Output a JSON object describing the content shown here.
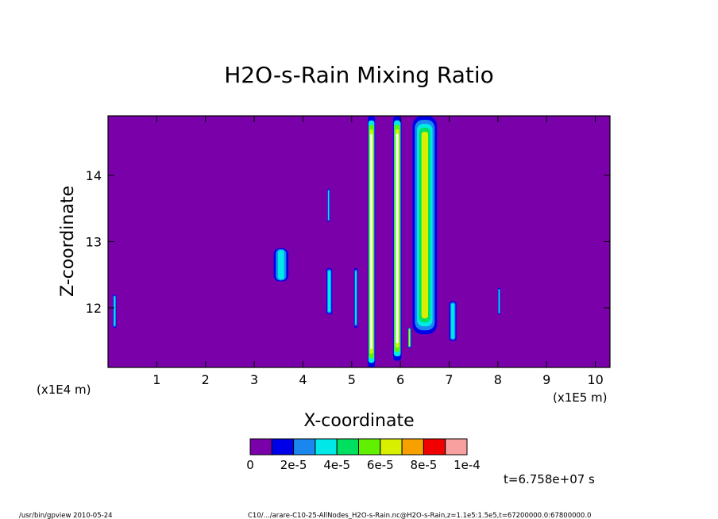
{
  "chart_data": {
    "type": "heatmap",
    "title": "H2O-s-Rain Mixing Ratio",
    "xlabel": "X-coordinate",
    "ylabel": "Z-coordinate",
    "x_scale_label": "(x1E5 m)",
    "y_scale_label": "(x1E4 m)",
    "xlim": [
      0.0,
      10.3
    ],
    "ylim": [
      11.1,
      14.9
    ],
    "x_ticks": [
      "1",
      "2",
      "3",
      "4",
      "5",
      "6",
      "7",
      "8",
      "9",
      "10"
    ],
    "y_ticks": [
      "12",
      "13",
      "14"
    ],
    "colorbar": {
      "colors": [
        "#7a00aa",
        "#0000e8",
        "#1a86ee",
        "#00e8e8",
        "#00e060",
        "#60f000",
        "#d8f000",
        "#f8a000",
        "#f00000",
        "#f8a0a0"
      ],
      "tick_labels": [
        "0",
        "2e-5",
        "4e-5",
        "6e-5",
        "8e-5",
        "1e-4"
      ]
    },
    "background_color": "#7a00aa",
    "features": [
      {
        "x": [
          5.33,
          5.48
        ],
        "z": [
          11.1,
          14.9
        ],
        "level": "high"
      },
      {
        "x": [
          5.85,
          6.02
        ],
        "z": [
          11.2,
          14.9
        ],
        "level": "high"
      },
      {
        "x": [
          6.25,
          6.75
        ],
        "z": [
          11.6,
          14.9
        ],
        "level": "medium"
      },
      {
        "x": [
          5.05,
          5.12
        ],
        "z": [
          11.7,
          12.6
        ],
        "level": "low"
      },
      {
        "x": [
          4.48,
          4.6
        ],
        "z": [
          11.9,
          12.6
        ],
        "level": "low"
      },
      {
        "x": [
          4.5,
          4.55
        ],
        "z": [
          13.3,
          13.8
        ],
        "level": "low"
      },
      {
        "x": [
          3.4,
          3.7
        ],
        "z": [
          12.4,
          12.9
        ],
        "level": "low"
      },
      {
        "x": [
          6.15,
          6.22
        ],
        "z": [
          11.4,
          11.7
        ],
        "level": "medium"
      },
      {
        "x": [
          7.0,
          7.15
        ],
        "z": [
          11.5,
          12.1
        ],
        "level": "low"
      },
      {
        "x": [
          8.0,
          8.05
        ],
        "z": [
          11.9,
          12.3
        ],
        "level": "low"
      },
      {
        "x": [
          0.1,
          0.17
        ],
        "z": [
          11.7,
          12.2
        ],
        "level": "low"
      }
    ]
  },
  "time_label": "t=6.758e+07 s",
  "footer_left": "/usr/bin/gpview  2010-05-24",
  "footer_right": "C10/.../arare-C10-25-AllNodes_H2O-s-Rain.nc@H2O-s-Rain,z=1.1e5:1.5e5,t=67200000.0:67800000.0"
}
